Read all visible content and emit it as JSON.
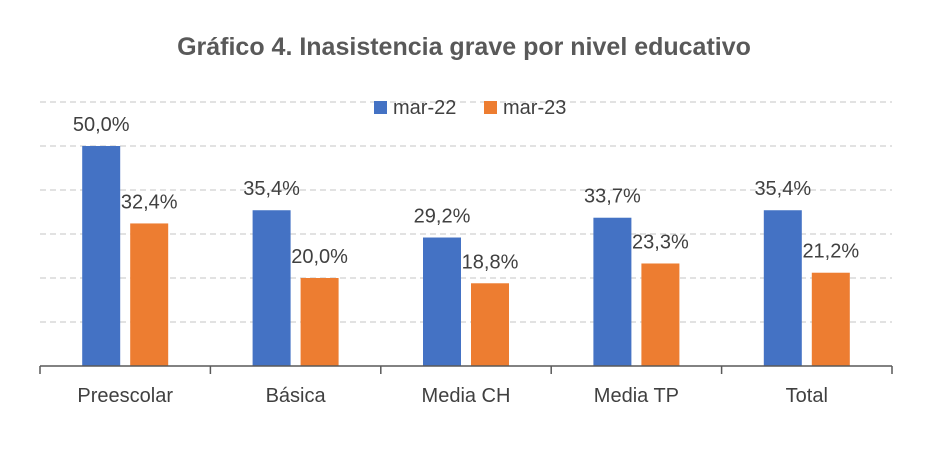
{
  "chart_data": {
    "type": "bar",
    "title": "Gráfico 4. Inasistencia grave por nivel educativo",
    "categories": [
      "Preescolar",
      "Básica",
      "Media CH",
      "Media TP",
      "Total"
    ],
    "series": [
      {
        "name": "mar-22",
        "color": "#4472C4",
        "values": [
          50.0,
          35.4,
          29.2,
          33.7,
          35.4
        ],
        "labels": [
          "50,0%",
          "35,4%",
          "29,2%",
          "33,7%",
          "35,4%"
        ]
      },
      {
        "name": "mar-23",
        "color": "#ED7D31",
        "values": [
          32.4,
          20.0,
          18.8,
          23.3,
          21.2
        ],
        "labels": [
          "32,4%",
          "20,0%",
          "18,8%",
          "23,3%",
          "21,2%"
        ]
      }
    ],
    "xlabel": "",
    "ylabel": "",
    "ylim": [
      0,
      60
    ],
    "y_gridlines": [
      10,
      20,
      30,
      40,
      50,
      60
    ],
    "grid": true,
    "legend": "top-center"
  }
}
